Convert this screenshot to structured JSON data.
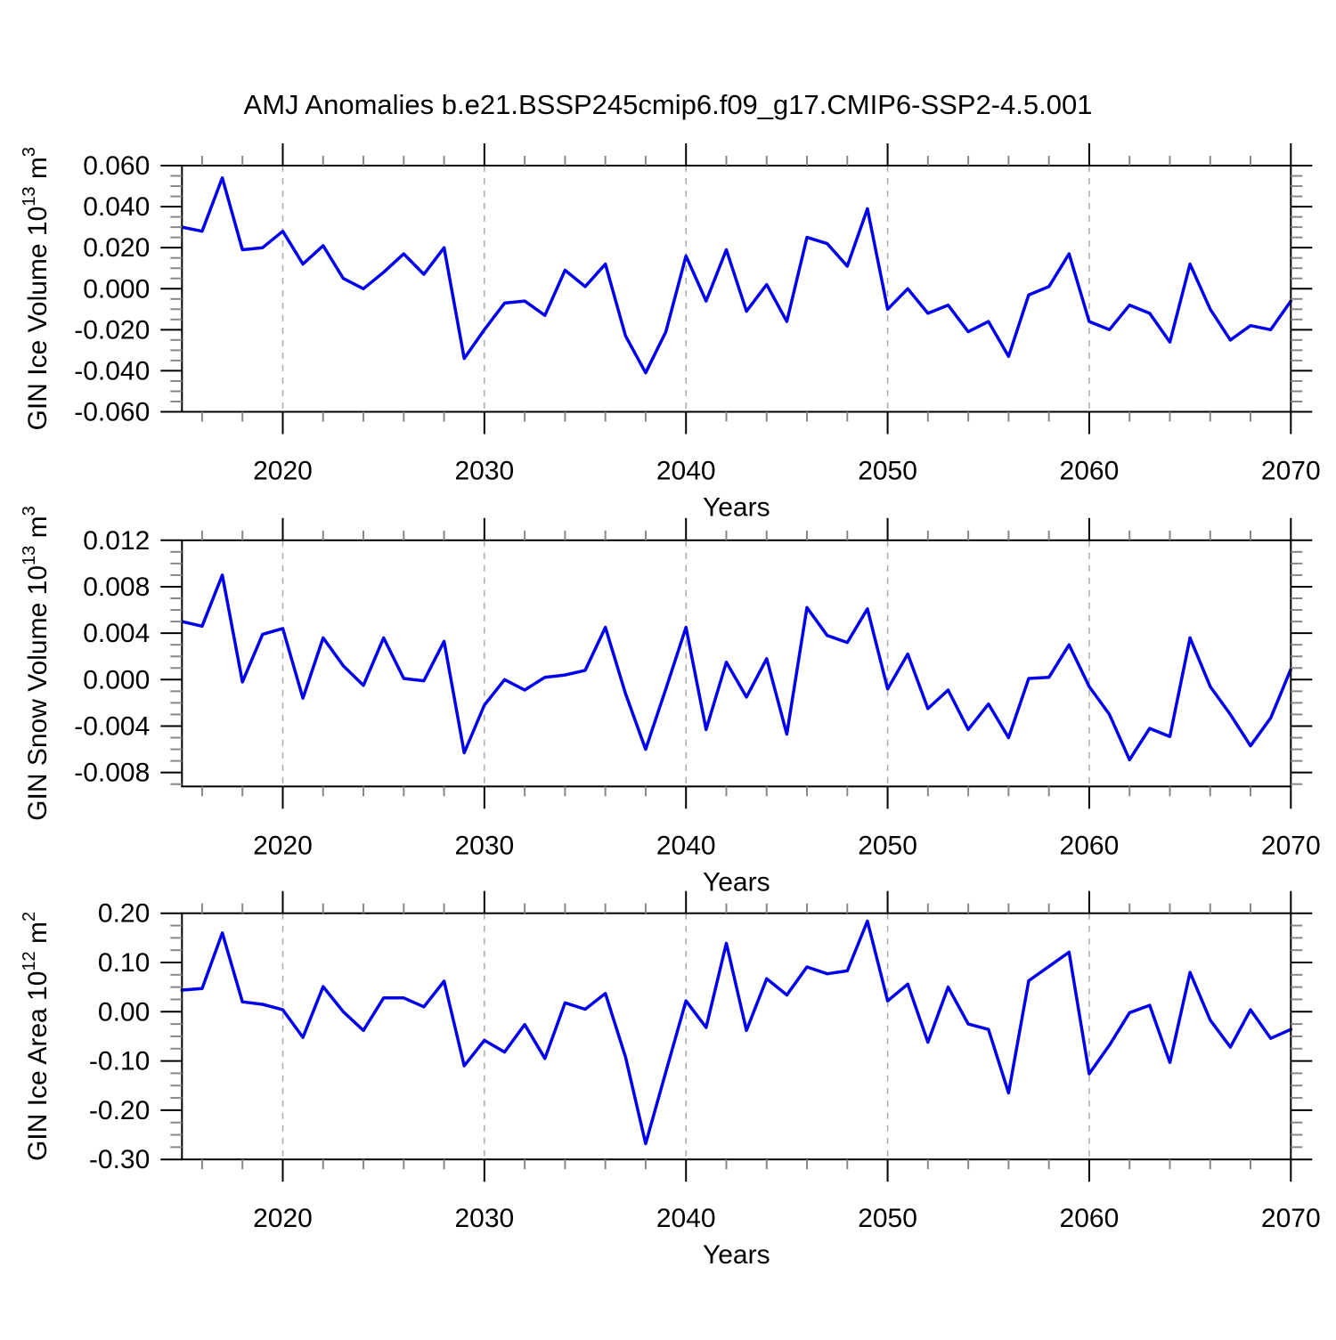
{
  "title": "AMJ Anomalies b.e21.BSSP245cmip6.f09_g17.CMIP6-SSP2-4.5.001",
  "style": {
    "line_color": "#0000EE",
    "axis_color": "#000000",
    "minor_tick_color": "#888888",
    "grid_color": "#AAAAAA",
    "background": "#FFFFFF"
  },
  "chart_data": [
    {
      "type": "line",
      "name": "gin-ice-volume",
      "ylabel": "GIN Ice Volume 10^13 m^3",
      "ylabel_parts": [
        {
          "t": "GIN Ice Volume 10"
        },
        {
          "t": "13",
          "sup": true
        },
        {
          "t": " m"
        },
        {
          "t": "3",
          "sup": true
        }
      ],
      "xlabel": "Years",
      "xlim": [
        2015,
        2070
      ],
      "ylim": [
        -0.06,
        0.06
      ],
      "yticks": [
        0.06,
        0.04,
        0.02,
        0.0,
        -0.02,
        -0.04,
        -0.06
      ],
      "ytick_labels": [
        "0.060",
        "0.040",
        "0.020",
        "0.000",
        "-0.020",
        "-0.040",
        "-0.060"
      ],
      "yminor_step": 0.005,
      "xticks": [
        2020,
        2030,
        2040,
        2050,
        2060,
        2070
      ],
      "xtick_labels": [
        "2020",
        "2030",
        "2040",
        "2050",
        "2060",
        "2070"
      ],
      "xminor_step": 2,
      "grid_x": [
        2020,
        2030,
        2040,
        2050,
        2060
      ],
      "years": [
        2015,
        2016,
        2017,
        2018,
        2019,
        2020,
        2021,
        2022,
        2023,
        2024,
        2025,
        2026,
        2027,
        2028,
        2029,
        2030,
        2031,
        2032,
        2033,
        2034,
        2035,
        2036,
        2037,
        2038,
        2039,
        2040,
        2041,
        2042,
        2043,
        2044,
        2045,
        2046,
        2047,
        2048,
        2049,
        2050,
        2051,
        2052,
        2053,
        2054,
        2055,
        2056,
        2057,
        2058,
        2059,
        2060,
        2061,
        2062,
        2063,
        2064,
        2065,
        2066,
        2067,
        2068,
        2069,
        2070
      ],
      "values": [
        0.03,
        0.028,
        0.054,
        0.019,
        0.02,
        0.028,
        0.012,
        0.021,
        0.005,
        0.0,
        0.008,
        0.017,
        0.007,
        0.02,
        -0.034,
        -0.02,
        -0.007,
        -0.006,
        -0.013,
        0.009,
        0.001,
        0.012,
        -0.023,
        -0.041,
        -0.021,
        0.016,
        -0.006,
        0.019,
        -0.011,
        0.002,
        -0.016,
        0.025,
        0.022,
        0.011,
        0.039,
        -0.01,
        0.0,
        -0.012,
        -0.008,
        -0.021,
        -0.016,
        -0.033,
        -0.003,
        0.001,
        0.017,
        -0.016,
        -0.02,
        -0.008,
        -0.012,
        -0.026,
        0.012,
        -0.01,
        -0.025,
        -0.018,
        -0.02,
        -0.006
      ]
    },
    {
      "type": "line",
      "name": "gin-snow-volume",
      "ylabel": "GIN Snow Volume 10^13 m^3",
      "ylabel_parts": [
        {
          "t": "GIN Snow Volume 10"
        },
        {
          "t": "13",
          "sup": true
        },
        {
          "t": " m"
        },
        {
          "t": "3",
          "sup": true
        }
      ],
      "xlabel": "Years",
      "xlim": [
        2015,
        2070
      ],
      "ylim": [
        -0.0092,
        0.012
      ],
      "yticks": [
        0.012,
        0.008,
        0.004,
        0.0,
        -0.004,
        -0.008
      ],
      "ytick_labels": [
        "0.012",
        "0.008",
        "0.004",
        "0.000",
        "-0.004",
        "-0.008"
      ],
      "yminor_step": 0.001,
      "xticks": [
        2020,
        2030,
        2040,
        2050,
        2060,
        2070
      ],
      "xtick_labels": [
        "2020",
        "2030",
        "2040",
        "2050",
        "2060",
        "2070"
      ],
      "xminor_step": 2,
      "grid_x": [
        2020,
        2030,
        2040,
        2050,
        2060
      ],
      "years": [
        2015,
        2016,
        2017,
        2018,
        2019,
        2020,
        2021,
        2022,
        2023,
        2024,
        2025,
        2026,
        2027,
        2028,
        2029,
        2030,
        2031,
        2032,
        2033,
        2034,
        2035,
        2036,
        2037,
        2038,
        2039,
        2040,
        2041,
        2042,
        2043,
        2044,
        2045,
        2046,
        2047,
        2048,
        2049,
        2050,
        2051,
        2052,
        2053,
        2054,
        2055,
        2056,
        2057,
        2058,
        2059,
        2060,
        2061,
        2062,
        2063,
        2064,
        2065,
        2066,
        2067,
        2068,
        2069,
        2070
      ],
      "values": [
        0.005,
        0.0046,
        0.009,
        -0.0002,
        0.0039,
        0.0044,
        -0.0016,
        0.0036,
        0.0012,
        -0.0005,
        0.0036,
        0.0001,
        -0.0001,
        0.0033,
        -0.0063,
        -0.0022,
        0.0,
        -0.0009,
        0.0002,
        0.0004,
        0.0008,
        0.0045,
        -0.0012,
        -0.006,
        -0.0008,
        0.0045,
        -0.0043,
        0.0015,
        -0.0015,
        0.0018,
        -0.0047,
        0.0062,
        0.0038,
        0.0032,
        0.0061,
        -0.0008,
        0.0022,
        -0.0025,
        -0.0009,
        -0.0043,
        -0.0021,
        -0.005,
        0.0001,
        0.0002,
        0.003,
        -0.0006,
        -0.003,
        -0.0069,
        -0.0042,
        -0.0049,
        0.0036,
        -0.0006,
        -0.003,
        -0.0057,
        -0.0033,
        0.0009
      ]
    },
    {
      "type": "line",
      "name": "gin-ice-area",
      "ylabel": "GIN Ice Area 10^12 m^2",
      "ylabel_parts": [
        {
          "t": "GIN Ice Area 10"
        },
        {
          "t": "12",
          "sup": true
        },
        {
          "t": " m"
        },
        {
          "t": "2",
          "sup": true
        }
      ],
      "xlabel": "Years",
      "xlim": [
        2015,
        2070
      ],
      "ylim": [
        -0.3,
        0.2
      ],
      "yticks": [
        0.2,
        0.1,
        0.0,
        -0.1,
        -0.2,
        -0.3
      ],
      "ytick_labels": [
        "0.20",
        "0.10",
        "0.00",
        "-0.10",
        "-0.20",
        "-0.30"
      ],
      "yminor_step": 0.025,
      "xticks": [
        2020,
        2030,
        2040,
        2050,
        2060,
        2070
      ],
      "xtick_labels": [
        "2020",
        "2030",
        "2040",
        "2050",
        "2060",
        "2070"
      ],
      "xminor_step": 2,
      "grid_x": [
        2020,
        2030,
        2040,
        2050,
        2060
      ],
      "years": [
        2015,
        2016,
        2017,
        2018,
        2019,
        2020,
        2021,
        2022,
        2023,
        2024,
        2025,
        2026,
        2027,
        2028,
        2029,
        2030,
        2031,
        2032,
        2033,
        2034,
        2035,
        2036,
        2037,
        2038,
        2039,
        2040,
        2041,
        2042,
        2043,
        2044,
        2045,
        2046,
        2047,
        2048,
        2049,
        2050,
        2051,
        2052,
        2053,
        2054,
        2055,
        2056,
        2057,
        2058,
        2059,
        2060,
        2061,
        2062,
        2063,
        2064,
        2065,
        2066,
        2067,
        2068,
        2069,
        2070
      ],
      "values": [
        0.044,
        0.047,
        0.16,
        0.02,
        0.015,
        0.004,
        -0.052,
        0.051,
        0.0,
        -0.038,
        0.028,
        0.028,
        0.01,
        0.062,
        -0.11,
        -0.058,
        -0.082,
        -0.026,
        -0.095,
        0.018,
        0.005,
        0.037,
        -0.092,
        -0.268,
        -0.122,
        0.022,
        -0.032,
        0.139,
        -0.038,
        0.067,
        0.034,
        0.091,
        0.077,
        0.083,
        0.184,
        0.022,
        0.056,
        -0.062,
        0.05,
        -0.025,
        -0.036,
        -0.165,
        0.063,
        0.092,
        0.121,
        -0.126,
        -0.068,
        -0.002,
        0.013,
        -0.103,
        0.08,
        -0.017,
        -0.072,
        0.004,
        -0.054,
        -0.036
      ]
    }
  ]
}
